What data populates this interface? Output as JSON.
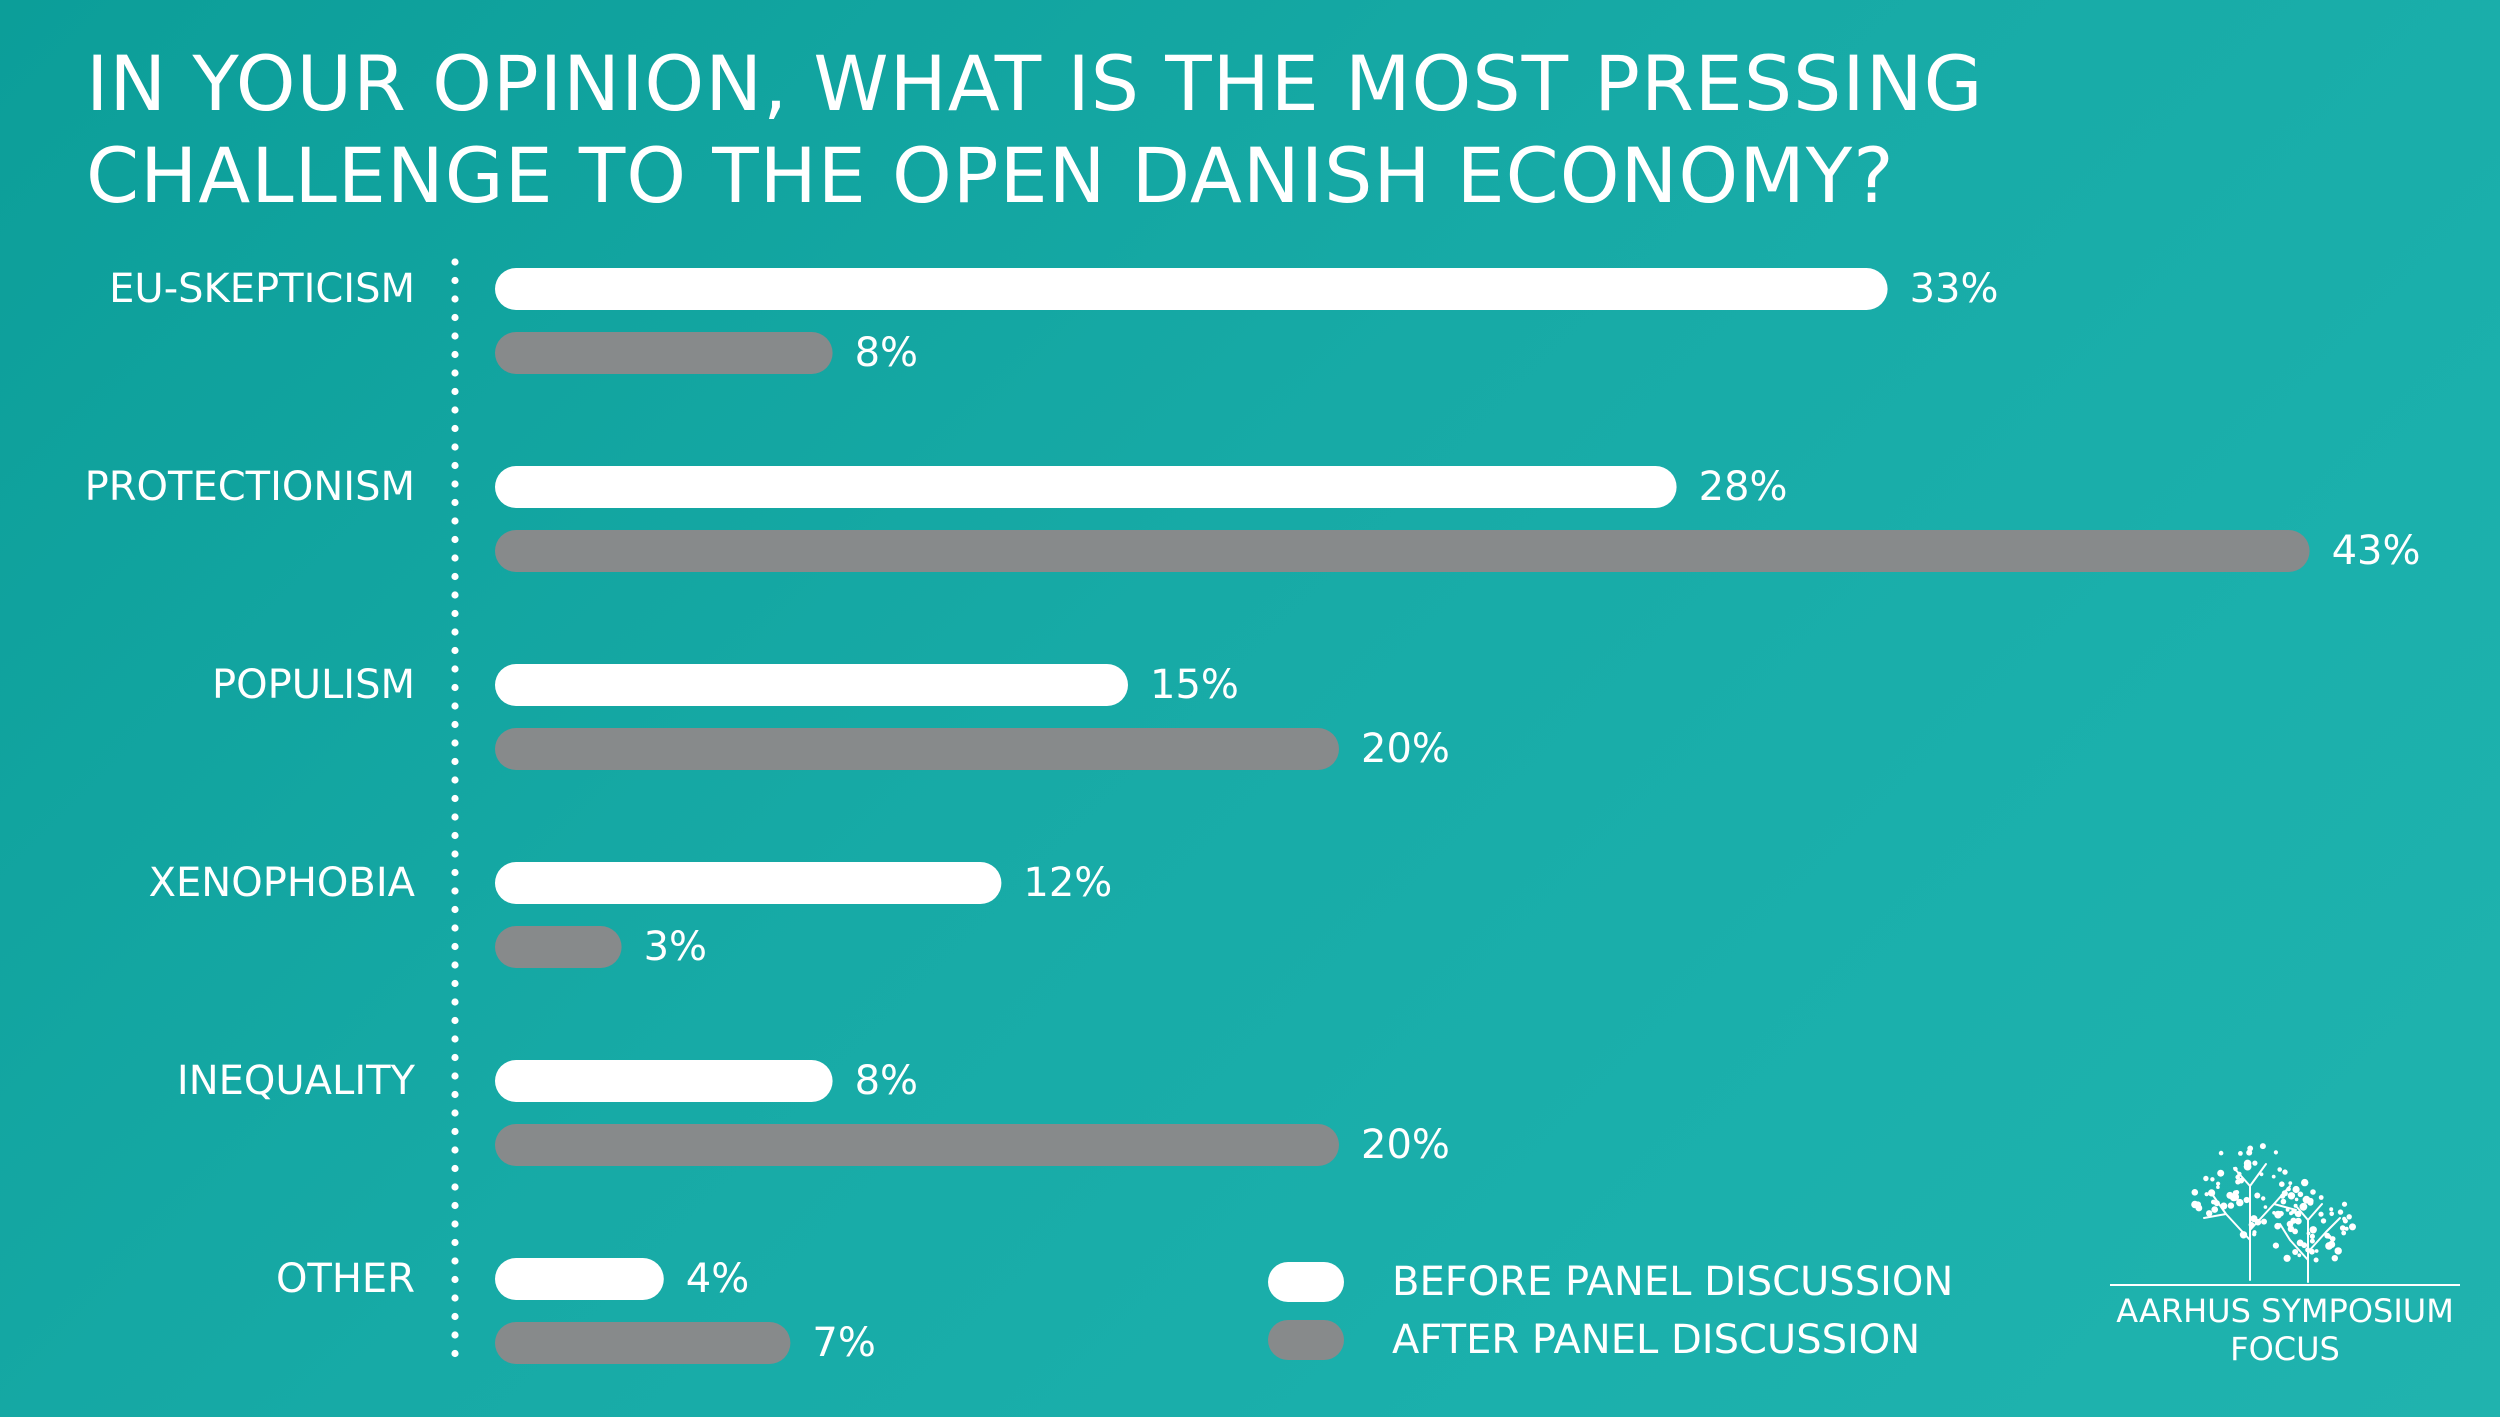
{
  "title": "IN YOUR OPINION, WHAT IS THE MOST PRESSING CHALLENGE TO THE OPEN DANISH ECONOMY?",
  "colors": {
    "background": "#14a6a1",
    "before": "#ffffff",
    "after": "#878a8b"
  },
  "chart_data": {
    "type": "bar",
    "orientation": "horizontal",
    "title": "IN YOUR OPINION, WHAT IS THE MOST PRESSING CHALLENGE TO THE OPEN DANISH ECONOMY?",
    "categories": [
      "EU-SKEPTICISM",
      "PROTECTIONISM",
      "POPULISM",
      "XENOPHOBIA",
      "INEQUALITY",
      "OTHER"
    ],
    "series": [
      {
        "name": "BEFORE PANEL DISCUSSION",
        "values": [
          33,
          28,
          15,
          12,
          8,
          4
        ],
        "labels": [
          "33%",
          "28%",
          "15%",
          "12%",
          "8%",
          "4%"
        ]
      },
      {
        "name": "AFTER PANEL DISCUSSION",
        "values": [
          8,
          43,
          20,
          3,
          20,
          7
        ],
        "labels": [
          "8%",
          "43%",
          "20%",
          "3%",
          "20%",
          "7%"
        ]
      }
    ],
    "unit": "%",
    "grid": false,
    "legend_position": "bottom-right"
  },
  "legend": {
    "before_label": "BEFORE PANEL DISCUSSION",
    "after_label": "AFTER PANEL DISCUSSION"
  },
  "logo": {
    "line1": "AARHUS SYMPOSIUM",
    "line2": "FOCUS",
    "icon": "tree-icon"
  }
}
